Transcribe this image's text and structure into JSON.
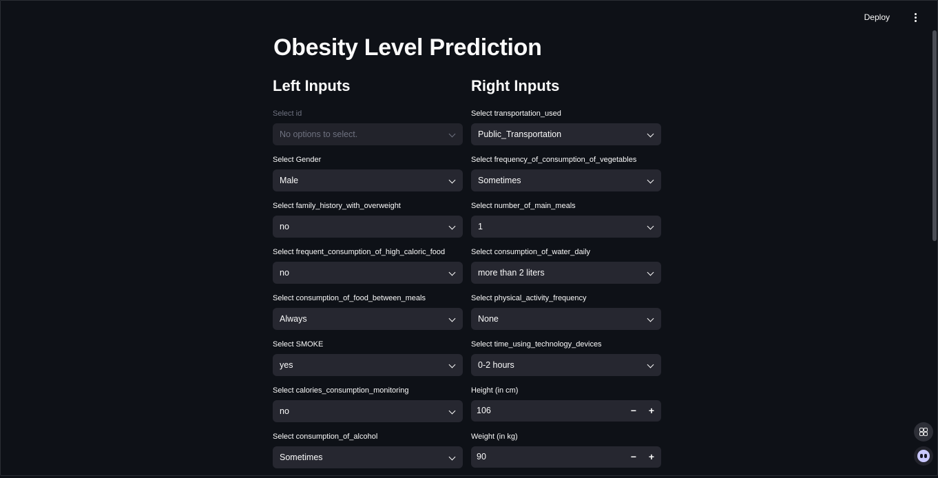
{
  "header": {
    "deploy_label": "Deploy"
  },
  "page_title": "Obesity Level Prediction",
  "left": {
    "heading": "Left Inputs",
    "fields": [
      {
        "label": "Select id",
        "value": "No options to select.",
        "disabled": true
      },
      {
        "label": "Select Gender",
        "value": "Male"
      },
      {
        "label": "Select family_history_with_overweight",
        "value": "no"
      },
      {
        "label": "Select frequent_consumption_of_high_caloric_food",
        "value": "no"
      },
      {
        "label": "Select consumption_of_food_between_meals",
        "value": "Always"
      },
      {
        "label": "Select SMOKE",
        "value": "yes"
      },
      {
        "label": "Select calories_consumption_monitoring",
        "value": "no"
      },
      {
        "label": "Select consumption_of_alcohol",
        "value": "Sometimes"
      }
    ]
  },
  "right": {
    "heading": "Right Inputs",
    "fields": [
      {
        "label": "Select transportation_used",
        "value": "Public_Transportation"
      },
      {
        "label": "Select frequency_of_consumption_of_vegetables",
        "value": "Sometimes"
      },
      {
        "label": "Select number_of_main_meals",
        "value": "1"
      },
      {
        "label": "Select consumption_of_water_daily",
        "value": "more than 2 liters"
      },
      {
        "label": "Select physical_activity_frequency",
        "value": "None"
      },
      {
        "label": "Select time_using_technology_devices",
        "value": "0-2 hours"
      }
    ],
    "height": {
      "label": "Height (in cm)",
      "value": "106",
      "minus": "−",
      "plus": "+"
    },
    "weight": {
      "label": "Weight (in kg)",
      "value": "90",
      "minus": "−",
      "plus": "+"
    }
  },
  "icons": {
    "menu": "vertical-dots-icon",
    "floating_grid": "grid-icon",
    "floating_bot": "assistant-bot-icon"
  }
}
